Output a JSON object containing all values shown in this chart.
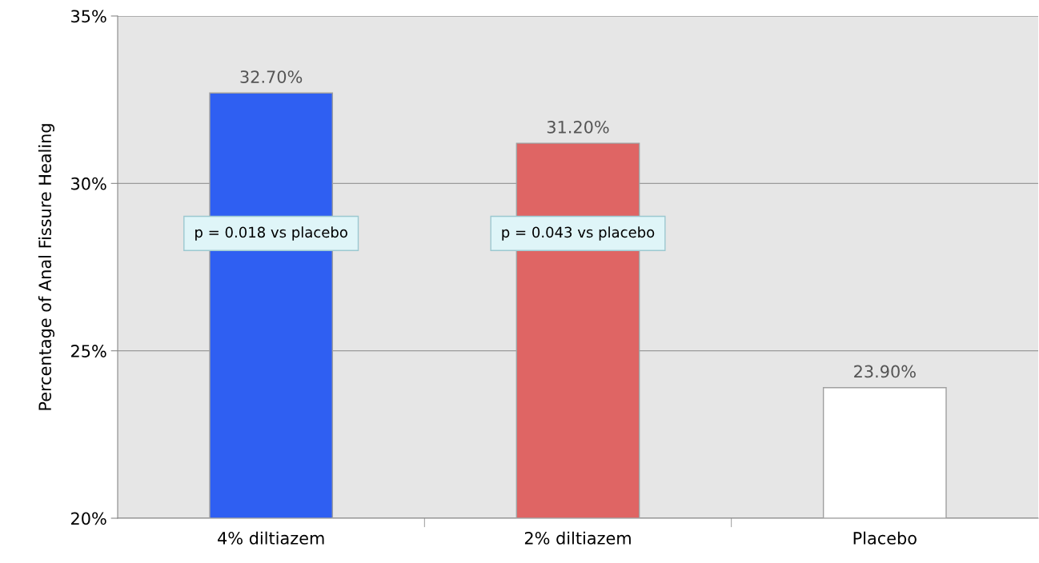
{
  "chart_data": {
    "type": "bar",
    "ylabel": "Percentage of Anal Fissure Healing",
    "categories": [
      "4% diltiazem",
      "2% diltiazem",
      "Placebo"
    ],
    "values": [
      32.7,
      31.2,
      23.9
    ],
    "colors": [
      "#2f5ff2",
      "#df6564",
      "#ffffff"
    ],
    "value_labels": [
      "32.70%",
      "31.20%",
      "23.90%"
    ],
    "ylim": [
      20,
      35
    ],
    "yticks": [
      {
        "value": 20,
        "label": "20%"
      },
      {
        "value": 25,
        "label": "25%"
      },
      {
        "value": 30,
        "label": "30%"
      },
      {
        "value": 35,
        "label": "35%"
      }
    ],
    "grid": "y",
    "legend": false,
    "annotations": [
      "p = 0.018 vs placebo",
      "p = 0.043 vs placebo"
    ]
  }
}
